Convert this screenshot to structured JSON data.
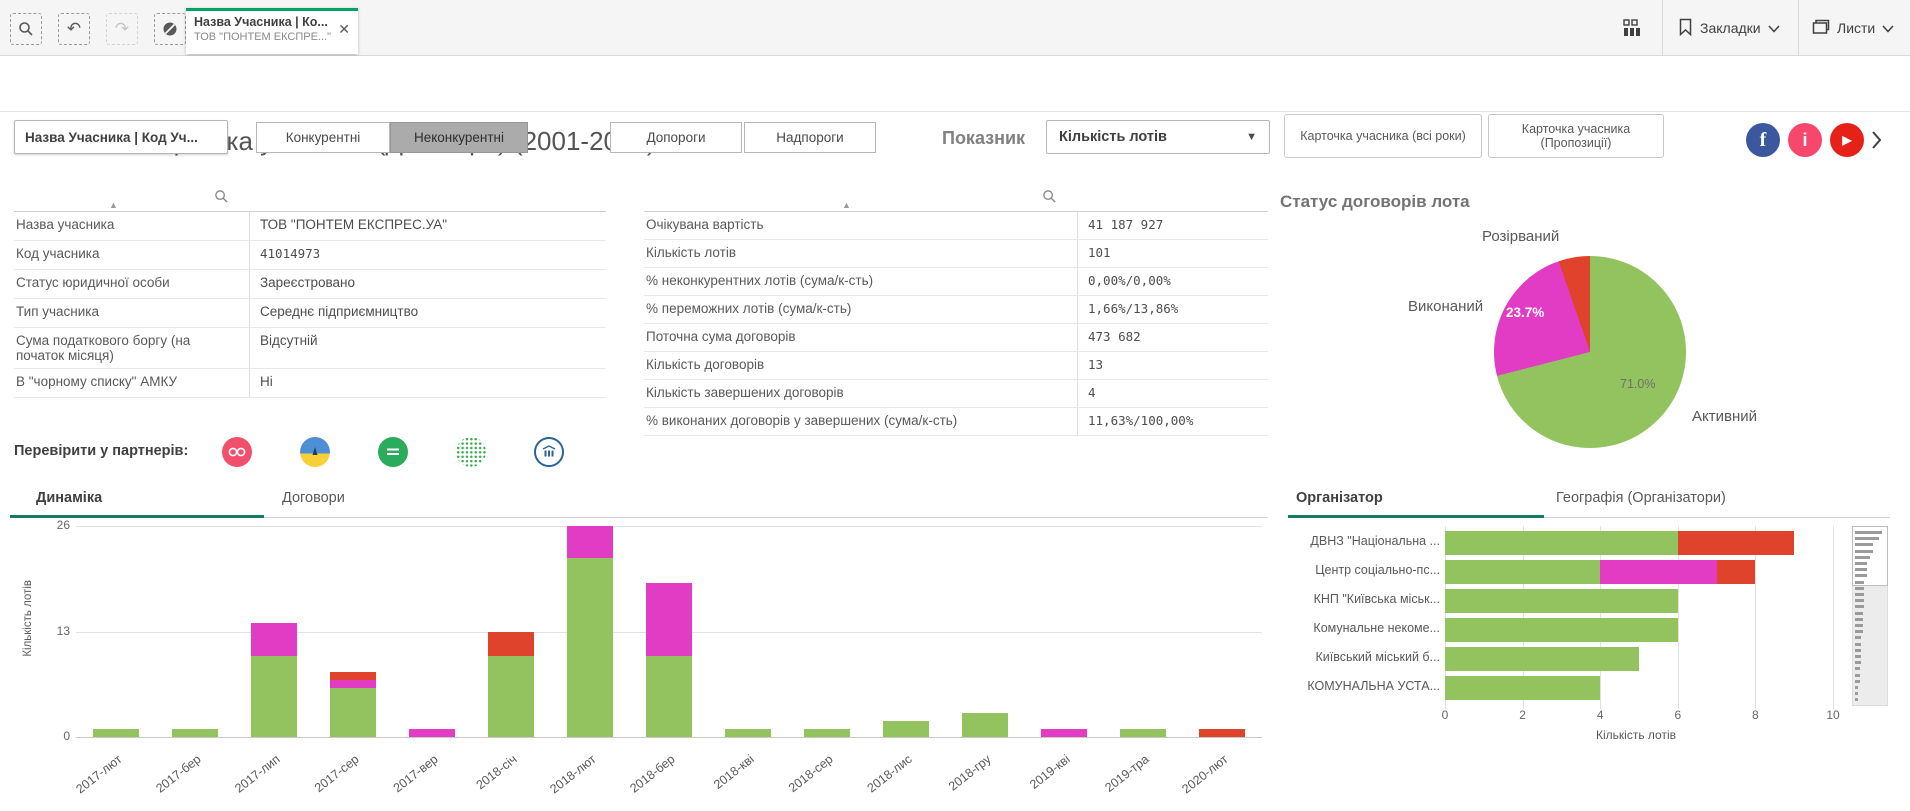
{
  "selection_toolbar": {
    "icons": [
      "search-selections",
      "undo-selection",
      "redo-selection",
      "clear-selections"
    ]
  },
  "selection_chip": {
    "field": "Назва Учасника | Ко...",
    "value": "ТОВ \"ПОНТЕМ ЕКСПРЕ...\""
  },
  "top_nav": {
    "bookmarks": "Закладки",
    "sheets": "Листи"
  },
  "header": {
    "title": "Карточка учасника (Договори) (2001-2024)"
  },
  "filter_bar": {
    "field_box": "Назва Учасника | Код Уч...",
    "buttons": [
      {
        "label": "Конкурентні",
        "selected": false
      },
      {
        "label": "Неконкурентні",
        "selected": true
      },
      {
        "label": "Допороги",
        "selected": false
      },
      {
        "label": "Надпороги",
        "selected": false
      }
    ],
    "indicator_label": "Показник",
    "indicator_value": "Кількість лотів",
    "link_buttons": [
      "Карточка учасника (всі роки)",
      "Карточка учасника (Пропозиції)"
    ]
  },
  "info_table": {
    "rows": [
      {
        "label": "Назва учасника",
        "value": "ТОВ \"ПОНТЕМ ЕКСПРЕС.УА\"",
        "num": false
      },
      {
        "label": "Код учасника",
        "value": "41014973",
        "num": true
      },
      {
        "label": "Статус юридичної особи",
        "value": "Зареєстровано",
        "num": false
      },
      {
        "label": "Тип учасника",
        "value": "Середнє підприємництво",
        "num": false
      },
      {
        "label": "Сума податкового боргу (на початок місяця)",
        "value": "Відсутній",
        "num": false
      },
      {
        "label": "В \"чорному списку\" АМКУ",
        "value": "Ні",
        "num": false
      }
    ]
  },
  "metrics_table": {
    "rows": [
      {
        "label": "Очікувана вартість",
        "value": "41 187 927"
      },
      {
        "label": "Кількість лотів",
        "value": "101"
      },
      {
        "label": "% неконкурентних лотів (сума/к-сть)",
        "value": "0,00%/0,00%"
      },
      {
        "label": "% переможних лотів (сума/к-сть)",
        "value": "1,66%/13,86%"
      },
      {
        "label": "Поточна сума договорів",
        "value": "473 682"
      },
      {
        "label": "Кількість договорів",
        "value": "13"
      },
      {
        "label": "Кількість завершених договорів",
        "value": "4"
      },
      {
        "label": "% виконаних договорів у завершених (сума/к-сть)",
        "value": "11,63%/100,00%"
      }
    ]
  },
  "partners": {
    "label": "Перевірити у партнерів:",
    "icons": [
      "opendatabot-icon",
      "clarity-project-icon",
      "youcontrol-icon",
      "dozorro-globe-icon",
      "court-register-icon"
    ]
  },
  "left_panel_tabs": {
    "items": [
      "Динаміка",
      "Договори"
    ],
    "active": "Динаміка"
  },
  "right_panel_tabs": {
    "items": [
      "Організатор",
      "Географія (Організатори)"
    ],
    "active": "Організатор"
  },
  "colors": {
    "green": "#92c35e",
    "magenta": "#e23cc4",
    "red": "#e0432c",
    "accent_green": "#157a63"
  },
  "chart_data": [
    {
      "id": "status-pie",
      "type": "pie",
      "title": "Статус договорів лота",
      "slices": [
        {
          "label": "Активний",
          "value": 71.0,
          "color": "#92c35e"
        },
        {
          "label": "Виконаний",
          "value": 23.7,
          "color": "#e23cc4"
        },
        {
          "label": "Розірваний",
          "value": 5.3,
          "color": "#e0432c"
        }
      ],
      "value_format": "percent"
    },
    {
      "id": "dynamics",
      "type": "bar",
      "stacked": true,
      "grid": true,
      "legend_position": "none",
      "ylabel": "Кількість лотів",
      "ylim": [
        0,
        26
      ],
      "yticks": [
        0,
        13,
        26
      ],
      "categories": [
        "2017-лют",
        "2017-бер",
        "2017-лип",
        "2017-сер",
        "2017-вер",
        "2018-січ",
        "2018-лют",
        "2018-бер",
        "2018-кві",
        "2018-сер",
        "2018-лис",
        "2018-гру",
        "2019-кві",
        "2019-тра",
        "2020-лют"
      ],
      "series": [
        {
          "name": "Активний",
          "color": "#92c35e",
          "values": [
            1,
            1,
            10,
            6,
            0,
            10,
            22,
            10,
            1,
            1,
            2,
            3,
            0,
            1,
            0
          ]
        },
        {
          "name": "Виконаний",
          "color": "#e23cc4",
          "values": [
            0,
            0,
            4,
            1,
            1,
            0,
            4,
            9,
            0,
            0,
            0,
            0,
            1,
            0,
            0
          ]
        },
        {
          "name": "Розірваний",
          "color": "#e0432c",
          "values": [
            0,
            0,
            0,
            1,
            0,
            3,
            0,
            0,
            0,
            0,
            0,
            0,
            0,
            0,
            1
          ]
        }
      ]
    },
    {
      "id": "organizers",
      "type": "bar",
      "orientation": "horizontal",
      "stacked": true,
      "grid": true,
      "xlabel": "Кількість лотів",
      "xlim": [
        0,
        10
      ],
      "xticks": [
        0,
        2,
        4,
        6,
        8,
        10
      ],
      "categories": [
        "ДВНЗ \"Національна ...",
        "Центр соціально-пс...",
        "КНП \"Київська міськ...",
        "Комунальне некоме...",
        "Київський міський б...",
        "КОМУНАЛЬНА УСТА..."
      ],
      "series": [
        {
          "name": "Активний",
          "color": "#92c35e",
          "values": [
            6,
            4,
            6,
            6,
            5,
            4
          ]
        },
        {
          "name": "Виконаний",
          "color": "#e23cc4",
          "values": [
            0,
            3,
            0,
            0,
            0,
            0
          ]
        },
        {
          "name": "Розірваний",
          "color": "#e0432c",
          "values": [
            3,
            1,
            0,
            0,
            0,
            0
          ]
        }
      ],
      "scroll_preview": [
        9,
        8,
        6,
        6,
        5,
        4,
        4,
        4,
        3,
        3,
        3,
        3,
        3,
        2.5,
        2.5,
        2.5,
        2.5,
        2,
        2,
        2,
        2,
        2,
        1.5,
        1.5,
        1.5,
        1,
        1,
        1
      ]
    }
  ]
}
